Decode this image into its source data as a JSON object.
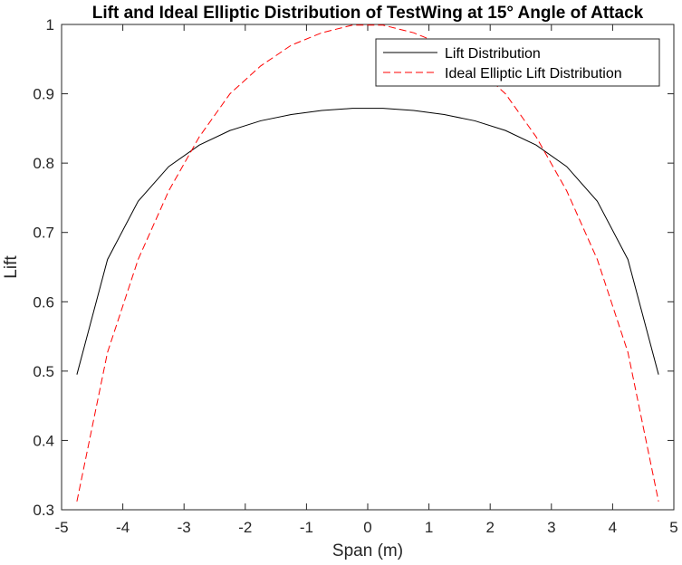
{
  "chart_data": {
    "type": "line",
    "title": "Lift and Ideal Elliptic Distribution of TestWing at 15° Angle of Attack",
    "xlabel": "Span (m)",
    "ylabel": "Lift",
    "xlim": [
      -5,
      5
    ],
    "ylim": [
      0.3,
      1
    ],
    "xticks": [
      -5,
      -4,
      -3,
      -2,
      -1,
      0,
      1,
      2,
      3,
      4,
      5
    ],
    "yticks": [
      0.3,
      0.4,
      0.5,
      0.6,
      0.7,
      0.8,
      0.9,
      1
    ],
    "grid": false,
    "legend_position": "top-right",
    "series": [
      {
        "name": "Lift Distribution",
        "color": "#000000",
        "style": "solid",
        "x": [
          -4.75,
          -4.25,
          -3.75,
          -3.25,
          -2.75,
          -2.25,
          -1.75,
          -1.25,
          -0.75,
          -0.25,
          0.25,
          0.75,
          1.25,
          1.75,
          2.25,
          2.75,
          3.25,
          3.75,
          4.25,
          4.75
        ],
        "y": [
          0.495,
          0.661,
          0.745,
          0.795,
          0.826,
          0.847,
          0.861,
          0.87,
          0.876,
          0.879,
          0.879,
          0.876,
          0.87,
          0.861,
          0.847,
          0.826,
          0.795,
          0.745,
          0.661,
          0.495
        ]
      },
      {
        "name": "Ideal Elliptic Lift Distribution",
        "color": "#ff0000",
        "style": "dashed",
        "x": [
          -4.75,
          -4.25,
          -3.75,
          -3.25,
          -2.75,
          -2.25,
          -1.75,
          -1.25,
          -0.75,
          -0.25,
          0.25,
          0.75,
          1.25,
          1.75,
          2.25,
          2.75,
          3.25,
          3.75,
          4.25,
          4.75
        ],
        "y": [
          0.312,
          0.527,
          0.661,
          0.76,
          0.838,
          0.9,
          0.94,
          0.97,
          0.988,
          0.999,
          0.999,
          0.988,
          0.97,
          0.94,
          0.9,
          0.838,
          0.76,
          0.661,
          0.527,
          0.312
        ]
      }
    ]
  }
}
